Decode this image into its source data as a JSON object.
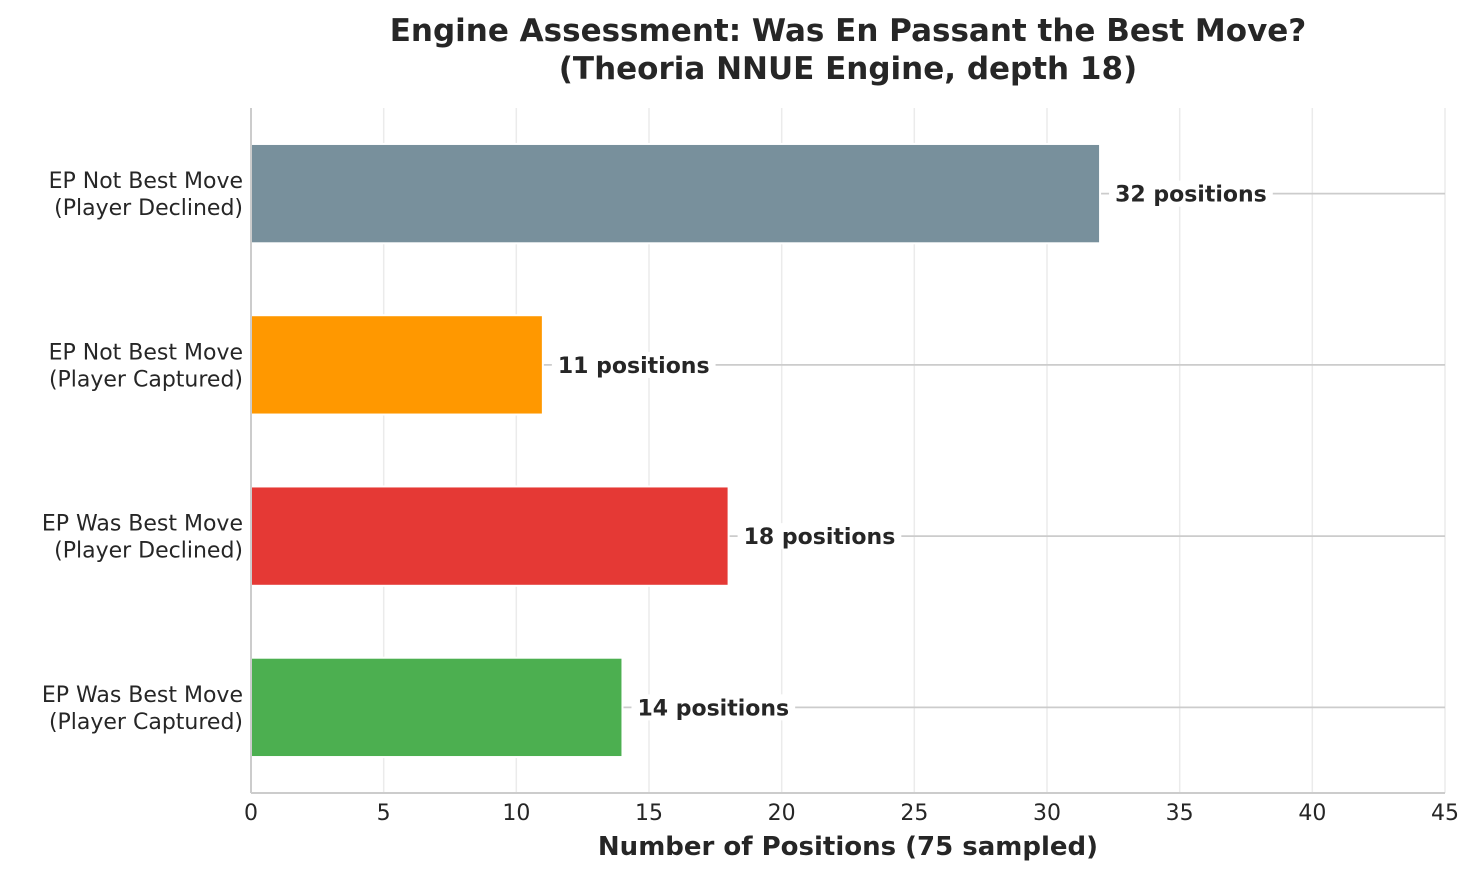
{
  "chart_data": {
    "type": "bar",
    "orientation": "horizontal",
    "title": "Engine Assessment: Was En Passant the Best Move?",
    "subtitle": "(Theoria NNUE Engine, depth 18)",
    "xlabel": "Number of Positions (75 sampled)",
    "ylabel": "",
    "xlim": [
      0,
      45
    ],
    "xticks": [
      0,
      5,
      10,
      15,
      20,
      25,
      30,
      35,
      40,
      45
    ],
    "grid": "vertical",
    "categories": [
      [
        "EP Not Best Move",
        "(Player Declined)"
      ],
      [
        "EP Not Best Move",
        "(Player Captured)"
      ],
      [
        "EP Was Best Move",
        "(Player Declined)"
      ],
      [
        "EP Was Best Move",
        "(Player Captured)"
      ]
    ],
    "values": [
      32,
      11,
      18,
      14
    ],
    "value_labels": [
      "32 positions",
      "11 positions",
      "18 positions",
      "14 positions"
    ],
    "colors": [
      "#78909c",
      "#ff9800",
      "#e53935",
      "#4caf50"
    ]
  }
}
